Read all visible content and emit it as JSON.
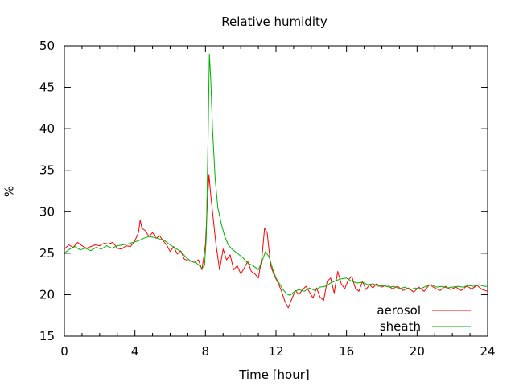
{
  "chart_data": {
    "type": "line",
    "title": "Relative humidity",
    "xlabel": "Time [hour]",
    "ylabel": "%",
    "xlim": [
      0,
      24
    ],
    "ylim": [
      15,
      50
    ],
    "xticks": [
      0,
      4,
      8,
      12,
      16,
      20,
      24
    ],
    "yticks": [
      15,
      20,
      25,
      30,
      35,
      40,
      45,
      50
    ],
    "grid": false,
    "legend_position": "bottom-right",
    "series": [
      {
        "name": "aerosol",
        "color": "#ff0000",
        "points": [
          [
            0,
            25.5
          ],
          [
            0.25,
            26.0
          ],
          [
            0.5,
            25.7
          ],
          [
            0.75,
            26.3
          ],
          [
            1.0,
            25.9
          ],
          [
            1.25,
            25.6
          ],
          [
            1.5,
            25.8
          ],
          [
            1.75,
            26.0
          ],
          [
            2.0,
            25.9
          ],
          [
            2.25,
            26.2
          ],
          [
            2.5,
            26.1
          ],
          [
            2.75,
            26.3
          ],
          [
            3.0,
            25.6
          ],
          [
            3.25,
            25.5
          ],
          [
            3.5,
            25.9
          ],
          [
            3.75,
            25.8
          ],
          [
            4.0,
            26.5
          ],
          [
            4.2,
            27.5
          ],
          [
            4.3,
            29.0
          ],
          [
            4.4,
            28.0
          ],
          [
            4.6,
            27.7
          ],
          [
            4.8,
            27.0
          ],
          [
            5.0,
            27.5
          ],
          [
            5.2,
            26.8
          ],
          [
            5.4,
            27.1
          ],
          [
            5.6,
            26.5
          ],
          [
            5.8,
            26.0
          ],
          [
            6.0,
            25.2
          ],
          [
            6.2,
            25.8
          ],
          [
            6.4,
            24.9
          ],
          [
            6.6,
            25.3
          ],
          [
            6.8,
            24.3
          ],
          [
            7.0,
            24.1
          ],
          [
            7.2,
            24.0
          ],
          [
            7.4,
            23.9
          ],
          [
            7.6,
            24.2
          ],
          [
            7.8,
            23.0
          ],
          [
            8.0,
            26.0
          ],
          [
            8.1,
            30.5
          ],
          [
            8.2,
            34.5
          ],
          [
            8.3,
            32.0
          ],
          [
            8.4,
            30.0
          ],
          [
            8.6,
            26.0
          ],
          [
            8.8,
            23.0
          ],
          [
            9.0,
            25.5
          ],
          [
            9.2,
            24.2
          ],
          [
            9.4,
            24.8
          ],
          [
            9.6,
            23.0
          ],
          [
            9.8,
            23.5
          ],
          [
            10.0,
            22.5
          ],
          [
            10.2,
            23.2
          ],
          [
            10.4,
            24.0
          ],
          [
            10.6,
            22.8
          ],
          [
            10.8,
            22.5
          ],
          [
            11.0,
            22.0
          ],
          [
            11.2,
            24.5
          ],
          [
            11.35,
            28.0
          ],
          [
            11.5,
            27.5
          ],
          [
            11.7,
            23.5
          ],
          [
            11.9,
            22.3
          ],
          [
            12.1,
            21.5
          ],
          [
            12.3,
            20.5
          ],
          [
            12.5,
            19.2
          ],
          [
            12.7,
            18.4
          ],
          [
            12.9,
            19.5
          ],
          [
            13.1,
            20.5
          ],
          [
            13.3,
            20.0
          ],
          [
            13.5,
            20.6
          ],
          [
            13.7,
            21.0
          ],
          [
            13.9,
            20.3
          ],
          [
            14.1,
            19.6
          ],
          [
            14.3,
            20.8
          ],
          [
            14.5,
            19.7
          ],
          [
            14.7,
            19.3
          ],
          [
            14.9,
            21.6
          ],
          [
            15.1,
            22.0
          ],
          [
            15.3,
            20.2
          ],
          [
            15.5,
            22.8
          ],
          [
            15.7,
            21.3
          ],
          [
            15.9,
            20.7
          ],
          [
            16.1,
            21.8
          ],
          [
            16.3,
            22.2
          ],
          [
            16.5,
            20.8
          ],
          [
            16.7,
            20.4
          ],
          [
            16.9,
            21.6
          ],
          [
            17.1,
            20.6
          ],
          [
            17.3,
            21.2
          ],
          [
            17.5,
            20.8
          ],
          [
            17.7,
            21.3
          ],
          [
            18.0,
            20.9
          ],
          [
            18.3,
            21.2
          ],
          [
            18.6,
            20.7
          ],
          [
            18.9,
            21.0
          ],
          [
            19.2,
            20.5
          ],
          [
            19.5,
            20.8
          ],
          [
            19.8,
            20.3
          ],
          [
            20.1,
            20.9
          ],
          [
            20.4,
            20.4
          ],
          [
            20.7,
            21.2
          ],
          [
            21.0,
            20.8
          ],
          [
            21.3,
            20.5
          ],
          [
            21.6,
            21.0
          ],
          [
            21.9,
            20.6
          ],
          [
            22.2,
            20.9
          ],
          [
            22.5,
            20.5
          ],
          [
            22.8,
            21.0
          ],
          [
            23.1,
            20.7
          ],
          [
            23.4,
            21.1
          ],
          [
            23.7,
            20.6
          ],
          [
            24.0,
            20.4
          ]
        ]
      },
      {
        "name": "sheath",
        "color": "#00b000",
        "points": [
          [
            0,
            25.0
          ],
          [
            0.3,
            25.5
          ],
          [
            0.6,
            25.8
          ],
          [
            0.9,
            25.4
          ],
          [
            1.2,
            25.6
          ],
          [
            1.5,
            25.3
          ],
          [
            1.8,
            25.7
          ],
          [
            2.1,
            25.5
          ],
          [
            2.4,
            25.9
          ],
          [
            2.7,
            25.6
          ],
          [
            3.0,
            25.9
          ],
          [
            3.3,
            26.0
          ],
          [
            3.6,
            26.1
          ],
          [
            3.9,
            26.3
          ],
          [
            4.2,
            26.5
          ],
          [
            4.5,
            26.8
          ],
          [
            4.8,
            27.0
          ],
          [
            5.1,
            26.9
          ],
          [
            5.4,
            26.7
          ],
          [
            5.7,
            26.5
          ],
          [
            6.0,
            26.0
          ],
          [
            6.3,
            25.6
          ],
          [
            6.6,
            25.2
          ],
          [
            6.9,
            24.5
          ],
          [
            7.2,
            24.0
          ],
          [
            7.5,
            23.8
          ],
          [
            7.8,
            23.2
          ],
          [
            7.95,
            23.5
          ],
          [
            8.05,
            27.0
          ],
          [
            8.15,
            39.0
          ],
          [
            8.22,
            49.0
          ],
          [
            8.3,
            46.0
          ],
          [
            8.4,
            40.0
          ],
          [
            8.55,
            34.0
          ],
          [
            8.7,
            30.5
          ],
          [
            8.9,
            28.5
          ],
          [
            9.1,
            27.0
          ],
          [
            9.3,
            26.0
          ],
          [
            9.5,
            25.5
          ],
          [
            9.8,
            25.0
          ],
          [
            10.1,
            24.5
          ],
          [
            10.4,
            23.8
          ],
          [
            10.7,
            23.5
          ],
          [
            11.0,
            23.0
          ],
          [
            11.2,
            24.0
          ],
          [
            11.4,
            25.2
          ],
          [
            11.6,
            24.6
          ],
          [
            11.8,
            23.2
          ],
          [
            12.0,
            22.0
          ],
          [
            12.2,
            21.3
          ],
          [
            12.4,
            20.6
          ],
          [
            12.6,
            20.1
          ],
          [
            12.8,
            19.9
          ],
          [
            13.0,
            20.3
          ],
          [
            13.3,
            20.6
          ],
          [
            13.6,
            20.4
          ],
          [
            13.9,
            20.8
          ],
          [
            14.2,
            20.5
          ],
          [
            14.5,
            20.9
          ],
          [
            14.8,
            21.0
          ],
          [
            15.1,
            21.4
          ],
          [
            15.4,
            21.7
          ],
          [
            15.7,
            21.9
          ],
          [
            16.0,
            22.0
          ],
          [
            16.3,
            21.6
          ],
          [
            16.6,
            21.4
          ],
          [
            16.9,
            21.5
          ],
          [
            17.2,
            21.2
          ],
          [
            17.5,
            21.3
          ],
          [
            17.8,
            21.0
          ],
          [
            18.1,
            21.1
          ],
          [
            18.4,
            20.9
          ],
          [
            18.7,
            21.0
          ],
          [
            19.0,
            20.7
          ],
          [
            19.3,
            20.9
          ],
          [
            19.6,
            20.6
          ],
          [
            19.9,
            20.8
          ],
          [
            20.2,
            20.7
          ],
          [
            20.5,
            21.0
          ],
          [
            20.8,
            21.2
          ],
          [
            21.1,
            20.9
          ],
          [
            21.4,
            21.0
          ],
          [
            21.7,
            20.8
          ],
          [
            22.0,
            20.9
          ],
          [
            22.3,
            21.0
          ],
          [
            22.6,
            20.9
          ],
          [
            22.9,
            21.1
          ],
          [
            23.2,
            21.0
          ],
          [
            23.5,
            21.2
          ],
          [
            23.8,
            21.0
          ],
          [
            24.0,
            21.0
          ]
        ]
      }
    ]
  }
}
